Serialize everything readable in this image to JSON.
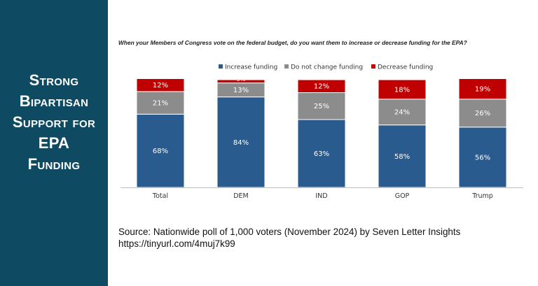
{
  "sidebar": {
    "title_lines": [
      "Strong",
      "Bipartisan",
      "Support for",
      "EPA",
      "Funding"
    ],
    "background": "#0f4a63"
  },
  "chart_data": {
    "type": "bar",
    "stacked": true,
    "title": "When your Members of Congress vote on the federal budget, do you want them to increase or decrease funding for the EPA?",
    "categories": [
      "Total",
      "DEM",
      "IND",
      "GOP",
      "Trump"
    ],
    "series": [
      {
        "name": "Increase funding",
        "color": "#2a5b8e",
        "values": [
          68,
          84,
          63,
          58,
          56
        ],
        "labels": [
          "68%",
          "84%",
          "63%",
          "58%",
          "56%"
        ]
      },
      {
        "name": "Do not change funding",
        "color": "#8c8c8c",
        "values": [
          21,
          13,
          25,
          24,
          26
        ],
        "labels": [
          "21%",
          "13%",
          "25%",
          "24%",
          "26%"
        ]
      },
      {
        "name": "Decrease funding",
        "color": "#c00000",
        "values": [
          12,
          3,
          12,
          18,
          19
        ],
        "labels": [
          "12%",
          "3%",
          "12%",
          "18%",
          "19%"
        ]
      }
    ],
    "ylim": [
      0,
      100
    ],
    "legend_position": "top",
    "grid": false
  },
  "source": {
    "line1": "Source: Nationwide poll of 1,000 voters (November 2024) by Seven Letter Insights",
    "line2": "https://tinyurl.com/4muj7k99"
  }
}
